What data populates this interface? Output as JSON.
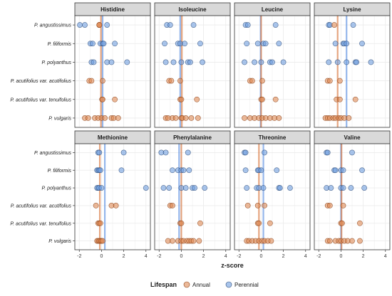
{
  "chart_data": {
    "type": "scatter",
    "xlabel": "z-score",
    "xlim": [
      -2.4,
      4.4
    ],
    "xticks": [
      -2,
      0,
      2,
      4
    ],
    "species": [
      "P. angustissimus",
      "P. filiformis",
      "P. polyanthus",
      "P. acutifolius var. acutifolius",
      "P. acutifolius var. tenuifolius",
      "P. vulgaris"
    ],
    "legend": {
      "title": "Lifespan",
      "placement": "bottom",
      "items": [
        {
          "label": "Annual",
          "color": "#e08a55"
        },
        {
          "label": "Perennial",
          "color": "#6f9fe0"
        }
      ]
    },
    "panels": [
      {
        "title": "Histidine",
        "annual_mean": -0.05,
        "perennial_mean": 0.1,
        "points": [
          [
            [
              -1.95,
              -1.5,
              0.5
            ],
            [
              -0.2,
              -0.2,
              -0.2
            ]
          ],
          [
            [
              -1.0,
              -0.8,
              -0.1,
              0.1,
              0.2,
              1.2
            ],
            []
          ],
          [
            [
              -0.9,
              -0.7,
              0.5,
              0.9,
              2.3
            ],
            []
          ],
          [
            [],
            [
              -1.1,
              -0.9,
              0.1
            ]
          ],
          [
            [],
            [
              0.05,
              0.1,
              1.2
            ]
          ],
          [
            [],
            [
              -1.5,
              -1.2,
              -0.6,
              -0.3,
              0.0,
              0.3,
              0.9,
              1.1,
              1.5
            ]
          ]
        ]
      },
      {
        "title": "Isoleucine",
        "annual_mean": 0.05,
        "perennial_mean": -0.1,
        "points": [
          [
            [
              -1.3,
              -1.0,
              1.1
            ],
            []
          ],
          [
            [
              -1.5,
              -0.3,
              -0.1,
              0.3,
              1.7
            ],
            []
          ],
          [
            [
              -1.4,
              -0.7,
              0.0,
              0.6,
              0.8,
              1.9
            ],
            []
          ],
          [
            [],
            [
              -1.1,
              -0.9,
              -0.1
            ]
          ],
          [
            [],
            [
              -0.1,
              0.0,
              1.4
            ]
          ],
          [
            [],
            [
              -1.4,
              -1.2,
              -0.8,
              -0.5,
              0.0,
              0.1,
              0.4,
              0.9,
              1.5
            ]
          ]
        ]
      },
      {
        "title": "Leucine",
        "annual_mean": 0.0,
        "perennial_mean": -0.05,
        "points": [
          [
            [
              -1.4,
              -1.2,
              1.3
            ],
            []
          ],
          [
            [
              -1.3,
              -0.3,
              0.2,
              0.4,
              1.6
            ],
            []
          ],
          [
            [
              -1.5,
              -0.6,
              0.0,
              0.8,
              1.0,
              2.0
            ],
            []
          ],
          [
            [],
            [
              -1.0,
              -0.8,
              0.1
            ]
          ],
          [
            [],
            [
              0.0,
              0.1,
              1.3
            ]
          ],
          [
            [],
            [
              -1.5,
              -1.0,
              -0.6,
              -0.2,
              0.1,
              0.4,
              0.8,
              1.2,
              1.6
            ]
          ]
        ]
      },
      {
        "title": "Lysine",
        "annual_mean": -0.3,
        "perennial_mean": 0.5,
        "points": [
          [
            [
              -1.1,
              -1.0,
              1.1
            ],
            [
              -0.6
            ]
          ],
          [
            [
              -0.5,
              0.2,
              0.3,
              0.5,
              1.9
            ],
            []
          ],
          [
            [
              -1.1,
              -0.3,
              0.5,
              1.3,
              1.4,
              2.7
            ],
            []
          ],
          [
            [],
            [
              -1.2,
              -1.0,
              -0.1
            ]
          ],
          [
            [],
            [
              -0.4,
              -0.1,
              1.3
            ]
          ],
          [
            [],
            [
              -1.4,
              -1.2,
              -1.0,
              -0.7,
              -0.5,
              -0.2,
              0.0,
              0.3,
              0.7
            ]
          ]
        ]
      },
      {
        "title": "Methionine",
        "annual_mean": -0.15,
        "perennial_mean": 0.3,
        "points": [
          [
            [
              -0.3,
              -0.2,
              2.0
            ],
            []
          ],
          [
            [
              -0.4,
              -0.3,
              -0.2,
              -0.1,
              1.8
            ],
            []
          ],
          [
            [
              -0.4,
              -0.3,
              -0.2,
              0.0,
              4.0
            ],
            []
          ],
          [
            [],
            [
              -0.5,
              0.9,
              1.3
            ]
          ],
          [
            [],
            [
              -0.3,
              -0.2,
              -0.1
            ]
          ],
          [
            [],
            [
              -0.4,
              -0.3,
              -0.2,
              -0.1,
              0.0,
              0.1
            ]
          ]
        ]
      },
      {
        "title": "Phenylalanine",
        "annual_mean": 0.0,
        "perennial_mean": -0.2,
        "points": [
          [
            [
              -1.8,
              -1.4,
              0.6
            ],
            []
          ],
          [
            [
              -0.8,
              -0.3,
              0.0,
              0.2,
              0.7
            ],
            []
          ],
          [
            [
              -1.6,
              -1.1,
              0.0,
              0.4,
              1.0,
              1.2,
              2.1
            ],
            []
          ],
          [
            [],
            [
              -1.0,
              -0.8
            ]
          ],
          [
            [],
            [
              -0.1,
              0.0,
              1.7
            ]
          ],
          [
            [],
            [
              -1.2,
              -0.8,
              -0.3,
              0.0,
              0.2,
              0.5,
              0.7,
              0.9,
              1.1,
              1.6
            ]
          ]
        ]
      },
      {
        "title": "Threonine",
        "annual_mean": -0.2,
        "perennial_mean": 0.2,
        "points": [
          [
            [
              -1.5,
              -1.4,
              0.3
            ],
            []
          ],
          [
            [
              -1.4,
              -0.3,
              -0.2,
              0.0,
              1.4
            ],
            []
          ],
          [
            [
              -1.3,
              -0.4,
              -0.2,
              0.2,
              1.6,
              1.7,
              2.6
            ],
            []
          ],
          [
            [],
            [
              -1.2,
              -0.3,
              0.3
            ]
          ],
          [
            [],
            [
              -0.3,
              -0.2,
              0.8
            ]
          ],
          [
            [],
            [
              -1.3,
              -1.1,
              -0.8,
              -0.5,
              -0.2,
              0.1,
              0.3,
              0.6,
              0.9
            ]
          ]
        ]
      },
      {
        "title": "Valine",
        "annual_mean": 0.05,
        "perennial_mean": 0.0,
        "points": [
          [
            [
              -1.3,
              -1.2,
              1.0
            ],
            []
          ],
          [
            [
              -0.6,
              -0.5,
              0.0,
              0.2,
              1.9
            ],
            []
          ],
          [
            [
              -1.3,
              -0.9,
              0.0,
              0.2,
              0.9,
              2.1
            ],
            []
          ],
          [
            [],
            [
              -1.2,
              -1.0,
              0.2
            ]
          ],
          [
            [],
            [
              0.0,
              0.1,
              1.7
            ]
          ],
          [
            [],
            [
              -1.2,
              -1.0,
              -0.5,
              -0.2,
              0.0,
              0.3,
              0.6,
              1.0,
              1.7
            ]
          ]
        ]
      }
    ]
  }
}
